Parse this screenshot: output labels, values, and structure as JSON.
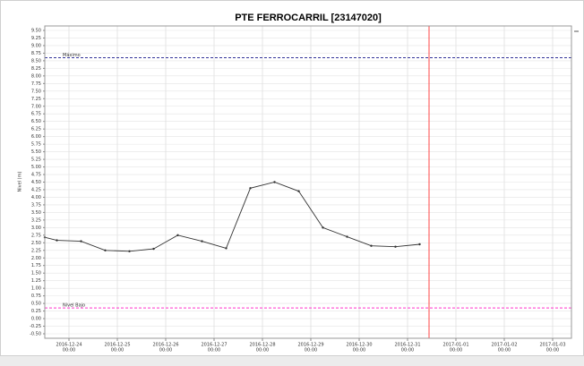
{
  "chart_data": {
    "type": "line",
    "title": "PTE FERROCARRIL [23147020]",
    "y_label": "Nivel (m)",
    "x": [
      "2016-12-23 12:00",
      "2016-12-23 18:00",
      "2016-12-24 06:00",
      "2016-12-24 18:00",
      "2016-12-25 06:00",
      "2016-12-25 18:00",
      "2016-12-26 06:00",
      "2016-12-26 18:00",
      "2016-12-27 06:00",
      "2016-12-27 18:00",
      "2016-12-28 06:00",
      "2016-12-28 18:00",
      "2016-12-29 06:00",
      "2016-12-29 18:00",
      "2016-12-30 06:00",
      "2016-12-30 18:00",
      "2016-12-31 06:00"
    ],
    "series": [
      {
        "name": "Nivel",
        "color": "#333333",
        "values": [
          2.68,
          2.58,
          2.55,
          2.25,
          2.22,
          2.3,
          2.75,
          2.55,
          2.32,
          4.3,
          4.5,
          4.2,
          3.0,
          2.7,
          2.4,
          2.37,
          2.45
        ]
      }
    ],
    "thresholds": [
      {
        "label": "Máximo",
        "value": 8.6,
        "color": "#333399"
      },
      {
        "label": "Nivel Bajo",
        "value": 0.35,
        "color": "#ff33cc"
      }
    ],
    "now_line": {
      "x": "2016-12-31 10:40",
      "color": "#ff4444"
    },
    "xlim": [
      "2016-12-23 12:00",
      "2017-01-03 09:20"
    ],
    "xticks": [
      {
        "value": "2016-12-24 00:00",
        "label": [
          "2016-12-24",
          "00:00"
        ]
      },
      {
        "value": "2016-12-25 00:00",
        "label": [
          "2016-12-25",
          "00:00"
        ]
      },
      {
        "value": "2016-12-26 00:00",
        "label": [
          "2016-12-26",
          "00:00"
        ]
      },
      {
        "value": "2016-12-27 00:00",
        "label": [
          "2016-12-27",
          "00:00"
        ]
      },
      {
        "value": "2016-12-28 00:00",
        "label": [
          "2016-12-28",
          "00:00"
        ]
      },
      {
        "value": "2016-12-29 00:00",
        "label": [
          "2016-12-29",
          "00:00"
        ]
      },
      {
        "value": "2016-12-30 00:00",
        "label": [
          "2016-12-30",
          "00:00"
        ]
      },
      {
        "value": "2016-12-31 00:00",
        "label": [
          "2016-12-31",
          "00:00"
        ]
      },
      {
        "value": "2017-01-01 00:00",
        "label": [
          "2017-01-01",
          "00:00"
        ]
      },
      {
        "value": "2017-01-02 00:00",
        "label": [
          "2017-01-02",
          "00:00"
        ]
      },
      {
        "value": "2017-01-03 00:00",
        "label": [
          "2017-01-03",
          "00:00"
        ]
      }
    ],
    "ylim": [
      -0.5,
      9.5
    ],
    "yticks": [
      {
        "value": 9.5,
        "label": "9.50"
      },
      9.25,
      {
        "value": 9,
        "label": "9.00"
      },
      8.75,
      {
        "value": 8.5,
        "label": "8.50"
      },
      8.25,
      {
        "value": 8,
        "label": "8.00"
      },
      7.75,
      {
        "value": 7.5,
        "label": "7.50"
      },
      7.25,
      {
        "value": 7,
        "label": "7.00"
      },
      6.75,
      {
        "value": 6.5,
        "label": "6.50"
      },
      6.25,
      {
        "value": 6,
        "label": "6.00"
      },
      5.75,
      {
        "value": 5.5,
        "label": "5.50"
      },
      5.25,
      {
        "value": 5,
        "label": "5.00"
      },
      4.75,
      {
        "value": 4.5,
        "label": "4.50"
      },
      4.25,
      {
        "value": 4,
        "label": "4.00"
      },
      3.75,
      {
        "value": 3.5,
        "label": "3.50"
      },
      3.25,
      {
        "value": 3,
        "label": "3.00"
      },
      2.75,
      {
        "value": 2.5,
        "label": "2.50"
      },
      2.25,
      {
        "value": 2,
        "label": "2.00"
      },
      1.75,
      {
        "value": 1.5,
        "label": "1.50"
      },
      1.25,
      {
        "value": 1,
        "label": "1.00"
      },
      0.75,
      {
        "value": 0.5,
        "label": "0.50"
      },
      0.25,
      {
        "value": 0,
        "label": "0.00"
      },
      -0.25,
      {
        "value": -0.5,
        "label": "-0.50"
      }
    ],
    "grid": true
  }
}
